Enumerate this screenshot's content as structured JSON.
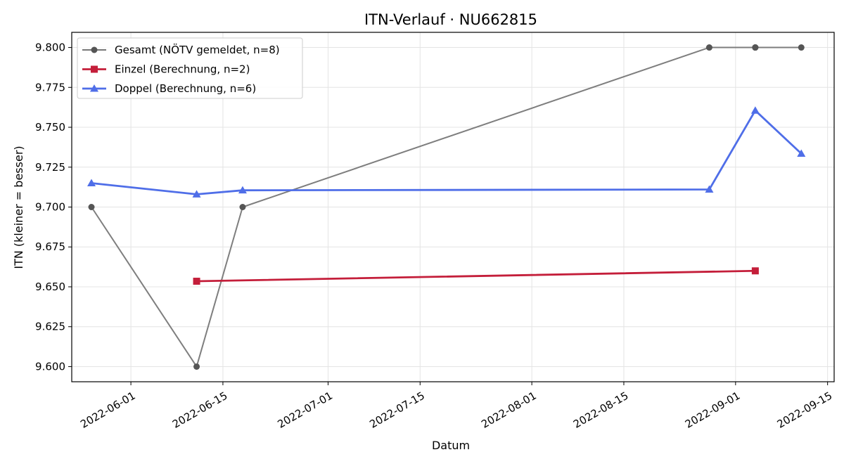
{
  "chart_data": {
    "type": "line",
    "title": "ITN-Verlauf · NU662815",
    "xlabel": "Datum",
    "ylabel": "ITN  (kleiner = besser)",
    "x_type": "date",
    "xlim": [
      "2022-05-23",
      "2022-09-16"
    ],
    "ylim": [
      9.5905,
      9.8095
    ],
    "x_ticks": [
      "2022-06-01",
      "2022-06-15",
      "2022-07-01",
      "2022-07-15",
      "2022-08-01",
      "2022-08-15",
      "2022-09-01",
      "2022-09-15"
    ],
    "y_ticks": [
      9.6,
      9.625,
      9.65,
      9.675,
      9.7,
      9.725,
      9.75,
      9.775,
      9.8
    ],
    "y_tick_labels": [
      "9.600",
      "9.625",
      "9.650",
      "9.675",
      "9.700",
      "9.725",
      "9.750",
      "9.775",
      "9.800"
    ],
    "grid": true,
    "legend_position": "top-left",
    "series": [
      {
        "name": "Gesamt (NÖTV gemeldet, n=8)",
        "color": "#777777",
        "marker_color": "#555555",
        "marker": "circle",
        "x": [
          "2022-05-26",
          "2022-06-11",
          "2022-06-18",
          "2022-08-28",
          "2022-09-04",
          "2022-09-04",
          "2022-09-04",
          "2022-09-11"
        ],
        "y": [
          9.7,
          9.6,
          9.7,
          9.8,
          9.8,
          9.8,
          9.8,
          9.8
        ]
      },
      {
        "name": "Einzel (Berechnung, n=2)",
        "color": "#c41e3a",
        "marker_color": "#c41e3a",
        "marker": "square",
        "x": [
          "2022-06-11",
          "2022-09-04"
        ],
        "y": [
          9.6535,
          9.66
        ]
      },
      {
        "name": "Doppel (Berechnung, n=6)",
        "color": "#4f6ee8",
        "marker_color": "#4f6ee8",
        "marker": "triangle",
        "x": [
          "2022-05-26",
          "2022-06-11",
          "2022-06-18",
          "2022-08-28",
          "2022-09-04",
          "2022-09-11"
        ],
        "y": [
          9.715,
          9.708,
          9.7105,
          9.711,
          9.7605,
          9.7335
        ]
      }
    ]
  }
}
